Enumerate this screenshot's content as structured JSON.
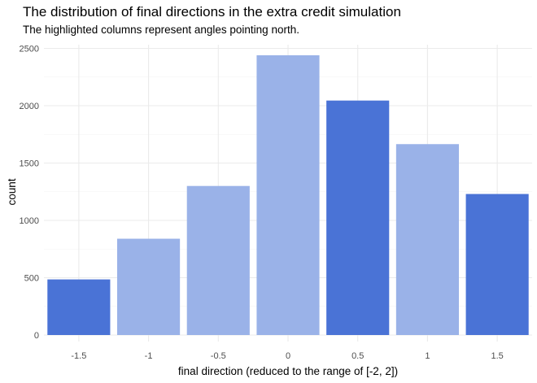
{
  "chart_data": {
    "type": "bar",
    "title": "The distribution of final directions in the extra credit simulation",
    "subtitle": "The highlighted columns represent angles pointing north.",
    "xlabel": "final direction (reduced to the range of [-2, 2])",
    "ylabel": "count",
    "categories": [
      "-1.5",
      "-1",
      "-0.5",
      "0",
      "0.5",
      "1",
      "1.5"
    ],
    "x": [
      -1.5,
      -1,
      -0.5,
      0,
      0.5,
      1,
      1.5
    ],
    "values": [
      485,
      840,
      1300,
      2440,
      2045,
      1665,
      1230
    ],
    "highlighted": [
      true,
      false,
      false,
      false,
      true,
      false,
      true
    ],
    "ylim": [
      0,
      2500
    ],
    "yticks": [
      0,
      500,
      1000,
      1500,
      2000,
      2500
    ],
    "xlim": [
      -1.75,
      1.75
    ],
    "grid": true,
    "colors": {
      "highlight": "#4a73d6",
      "normal": "#9ab2e8"
    }
  }
}
